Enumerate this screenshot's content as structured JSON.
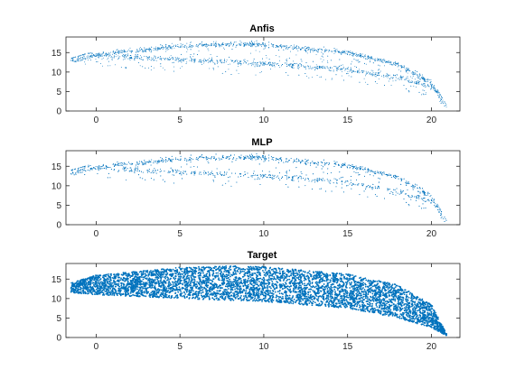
{
  "figure": {
    "background": "#ffffff"
  },
  "chart_data": [
    {
      "type": "scatter",
      "title": "Anfis",
      "xlim": [
        -1.8,
        21.7
      ],
      "ylim": [
        0,
        19
      ],
      "xticks": [
        0,
        5,
        10,
        15,
        20
      ],
      "yticks": [
        0,
        5,
        10,
        15
      ],
      "grid": false,
      "color": "#0072BD",
      "marker_size": "small",
      "density": "sparse",
      "upper_envelope": [
        [
          -1.5,
          13.5
        ],
        [
          0,
          15.5
        ],
        [
          5,
          17.6
        ],
        [
          8,
          18.2
        ],
        [
          10,
          18.0
        ],
        [
          15,
          16.0
        ],
        [
          18,
          13.0
        ],
        [
          20,
          8.0
        ],
        [
          20.9,
          1.5
        ]
      ],
      "lower_envelope": [
        [
          -1.5,
          13.0
        ],
        [
          0,
          11.0
        ],
        [
          5,
          10.0
        ],
        [
          10,
          9.0
        ],
        [
          15,
          7.5
        ],
        [
          18,
          5.5
        ],
        [
          20,
          3.0
        ],
        [
          20.9,
          1.0
        ]
      ],
      "upper_band": {
        "center_offset": -1.0,
        "half_width": 1.2
      },
      "lower_band": {
        "center_offset": 3.2,
        "half_width": 1.5
      }
    },
    {
      "type": "scatter",
      "title": "MLP",
      "xlim": [
        -1.8,
        21.7
      ],
      "ylim": [
        0,
        19
      ],
      "xticks": [
        0,
        5,
        10,
        15,
        20
      ],
      "yticks": [
        0,
        5,
        10,
        15
      ],
      "grid": false,
      "color": "#0072BD",
      "marker_size": "small",
      "density": "medium",
      "upper_envelope": [
        [
          -1.5,
          14.0
        ],
        [
          0,
          15.8
        ],
        [
          5,
          17.8
        ],
        [
          8,
          18.4
        ],
        [
          10,
          18.2
        ],
        [
          15,
          16.2
        ],
        [
          18,
          13.2
        ],
        [
          20,
          8.0
        ],
        [
          20.9,
          1.0
        ]
      ],
      "lower_envelope": [
        [
          -1.5,
          13.0
        ],
        [
          0,
          11.5
        ],
        [
          5,
          10.5
        ],
        [
          10,
          9.5
        ],
        [
          15,
          8.0
        ],
        [
          18,
          5.5
        ],
        [
          20,
          3.0
        ],
        [
          20.9,
          0.5
        ]
      ],
      "upper_band": {
        "center_offset": -1.0,
        "half_width": 1.3
      },
      "lower_band": {
        "center_offset": 3.0,
        "half_width": 1.6
      }
    },
    {
      "type": "scatter",
      "title": "Target",
      "xlim": [
        -1.8,
        21.7
      ],
      "ylim": [
        0,
        19
      ],
      "xticks": [
        0,
        5,
        10,
        15,
        20
      ],
      "yticks": [
        0,
        5,
        10,
        15
      ],
      "grid": false,
      "color": "#0072BD",
      "marker_size": "medium",
      "density": "solid",
      "upper_envelope": [
        [
          -1.5,
          14.0
        ],
        [
          0,
          16.0
        ],
        [
          5,
          18.0
        ],
        [
          8,
          18.4
        ],
        [
          10,
          18.2
        ],
        [
          15,
          16.3
        ],
        [
          18,
          13.5
        ],
        [
          20,
          8.5
        ],
        [
          20.9,
          1.0
        ]
      ],
      "lower_envelope": [
        [
          -1.5,
          11.5
        ],
        [
          0,
          11.0
        ],
        [
          5,
          10.0
        ],
        [
          10,
          9.2
        ],
        [
          15,
          7.5
        ],
        [
          18,
          5.0
        ],
        [
          20,
          2.5
        ],
        [
          20.9,
          0.5
        ]
      ]
    }
  ]
}
